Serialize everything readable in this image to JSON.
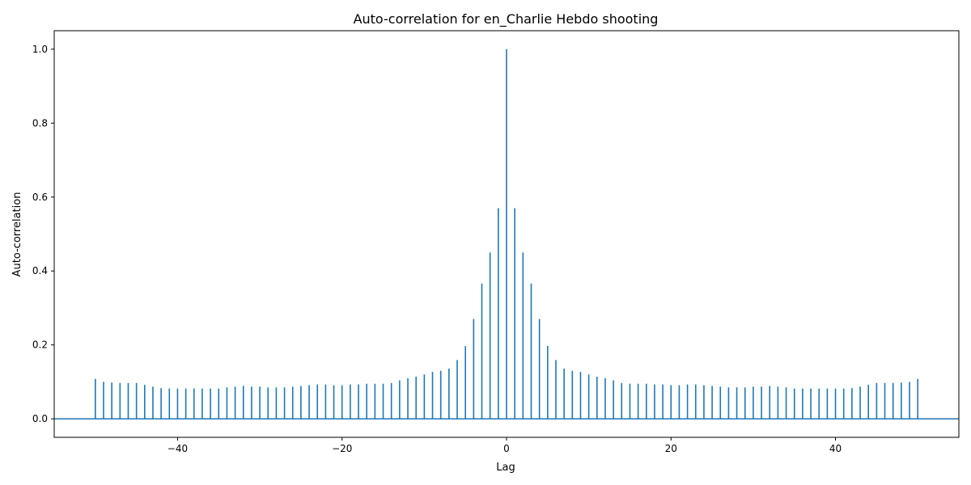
{
  "chart_data": {
    "type": "bar",
    "subtype": "stem",
    "title": "Auto-correlation for en_Charlie Hebdo shooting",
    "xlabel": "Lag",
    "ylabel": "Auto-correlation",
    "xlim": [
      -55,
      55
    ],
    "ylim": [
      -0.05,
      1.05
    ],
    "xticks": [
      -40,
      -20,
      0,
      20,
      40
    ],
    "xtick_labels": [
      "−40",
      "−20",
      "0",
      "20",
      "40"
    ],
    "yticks": [
      0.0,
      0.2,
      0.4,
      0.6,
      0.8,
      1.0
    ],
    "ytick_labels": [
      "0.0",
      "0.2",
      "0.4",
      "0.6",
      "0.8",
      "1.0"
    ],
    "grid": false,
    "color": "#1f77b4",
    "baseline": 0,
    "x": [
      -50,
      -49,
      -48,
      -47,
      -46,
      -45,
      -44,
      -43,
      -42,
      -41,
      -40,
      -39,
      -38,
      -37,
      -36,
      -35,
      -34,
      -33,
      -32,
      -31,
      -30,
      -29,
      -28,
      -27,
      -26,
      -25,
      -24,
      -23,
      -22,
      -21,
      -20,
      -19,
      -18,
      -17,
      -16,
      -15,
      -14,
      -13,
      -12,
      -11,
      -10,
      -9,
      -8,
      -7,
      -6,
      -5,
      -4,
      -3,
      -2,
      -1,
      0,
      1,
      2,
      3,
      4,
      5,
      6,
      7,
      8,
      9,
      10,
      11,
      12,
      13,
      14,
      15,
      16,
      17,
      18,
      19,
      20,
      21,
      22,
      23,
      24,
      25,
      26,
      27,
      28,
      29,
      30,
      31,
      32,
      33,
      34,
      35,
      36,
      37,
      38,
      39,
      40,
      41,
      42,
      43,
      44,
      45,
      46,
      47,
      48,
      49,
      50
    ],
    "values": [
      0.108,
      0.1,
      0.098,
      0.097,
      0.097,
      0.097,
      0.092,
      0.087,
      0.083,
      0.082,
      0.082,
      0.082,
      0.082,
      0.082,
      0.082,
      0.082,
      0.085,
      0.087,
      0.089,
      0.087,
      0.087,
      0.085,
      0.085,
      0.085,
      0.087,
      0.089,
      0.091,
      0.093,
      0.093,
      0.091,
      0.091,
      0.093,
      0.093,
      0.095,
      0.095,
      0.095,
      0.097,
      0.104,
      0.11,
      0.114,
      0.12,
      0.127,
      0.13,
      0.136,
      0.159,
      0.197,
      0.27,
      0.366,
      0.45,
      0.57,
      1.0,
      0.57,
      0.45,
      0.366,
      0.27,
      0.197,
      0.159,
      0.136,
      0.13,
      0.127,
      0.12,
      0.114,
      0.11,
      0.104,
      0.097,
      0.095,
      0.095,
      0.095,
      0.093,
      0.093,
      0.091,
      0.091,
      0.093,
      0.093,
      0.091,
      0.089,
      0.087,
      0.085,
      0.085,
      0.085,
      0.087,
      0.087,
      0.089,
      0.087,
      0.085,
      0.082,
      0.082,
      0.082,
      0.082,
      0.082,
      0.082,
      0.082,
      0.083,
      0.087,
      0.092,
      0.097,
      0.097,
      0.097,
      0.098,
      0.1,
      0.108
    ]
  }
}
